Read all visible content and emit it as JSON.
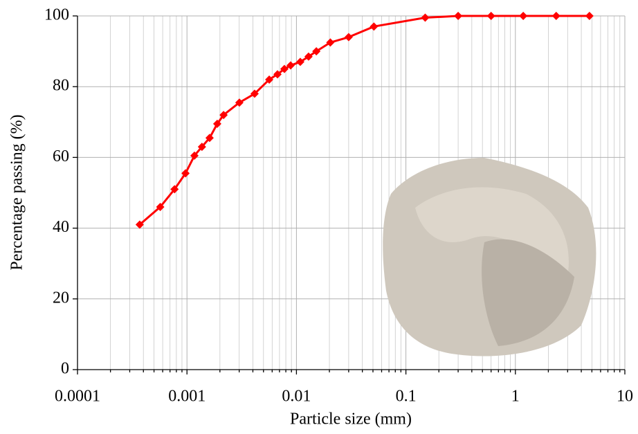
{
  "chart_data": {
    "type": "line",
    "log_x": true,
    "grid": true,
    "minor_grid": true,
    "x_label": "Particle size (mm)",
    "y_label": "Percentage passing (%)",
    "xlim": [
      0.0001,
      10
    ],
    "xticks": [
      0.0001,
      0.001,
      0.01,
      0.1,
      1,
      10
    ],
    "ylim": [
      0,
      100
    ],
    "yticks": [
      0,
      20,
      40,
      60,
      80,
      100
    ],
    "series": [
      {
        "color": "#ff0000",
        "x": [
          0.00037,
          0.00057,
          0.00077,
          0.00097,
          0.00117,
          0.00137,
          0.00161,
          0.00189,
          0.00216,
          0.00301,
          0.00415,
          0.00564,
          0.00671,
          0.00776,
          0.00885,
          0.01084,
          0.0129,
          0.0152,
          0.0204,
          0.03,
          0.051,
          0.15,
          0.3,
          0.6,
          1.18,
          2.36,
          4.75
        ],
        "values": [
          41,
          46,
          51,
          55.5,
          60.5,
          63,
          65.5,
          69.5,
          72,
          75.5,
          78,
          82,
          83.5,
          85,
          86,
          87,
          88.5,
          90,
          92.5,
          94,
          97,
          99.5,
          100,
          100,
          100,
          100,
          100
        ]
      }
    ]
  }
}
